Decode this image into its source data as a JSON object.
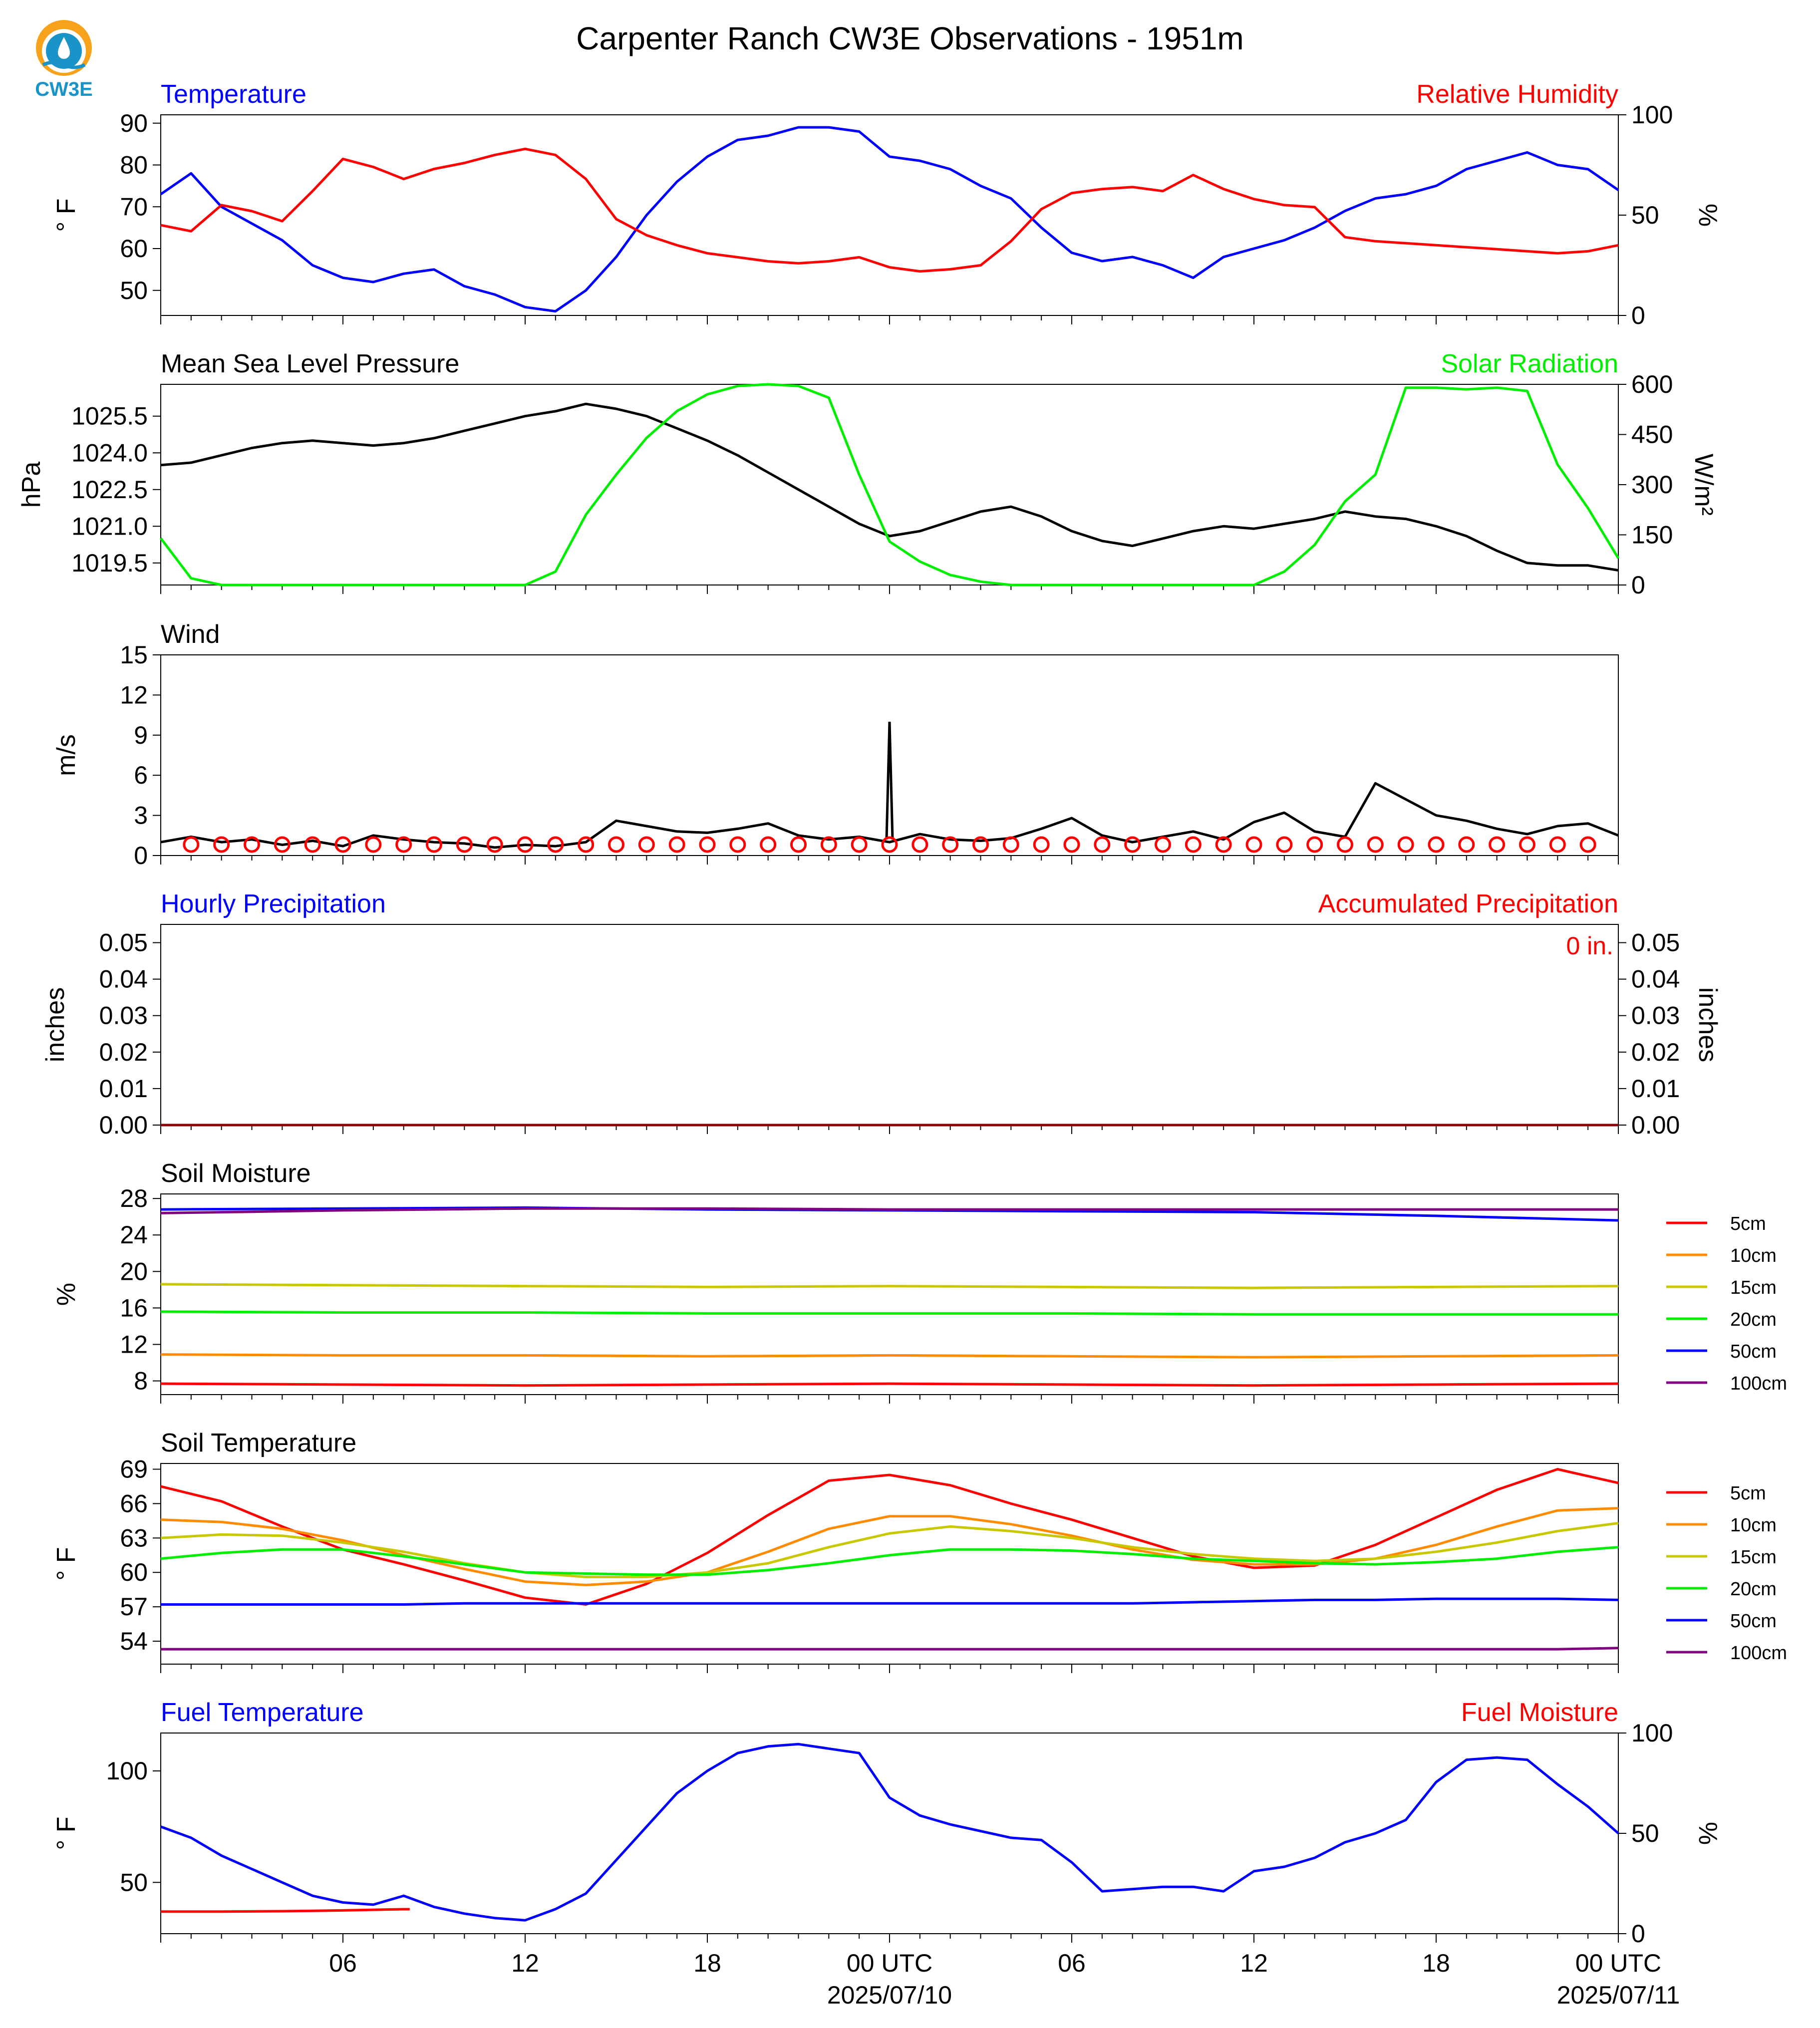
{
  "header": {
    "title": "Carpenter Ranch CW3E Observations - 1951m",
    "logo_text": "CW3E"
  },
  "x_axis": {
    "ticks": [
      "06",
      "12",
      "18",
      "00 UTC",
      "06",
      "12",
      "18",
      "00 UTC"
    ],
    "dates": [
      "2025/07/10",
      "2025/07/11"
    ]
  },
  "chart_data": [
    {
      "id": "temp_rh",
      "type": "line",
      "left_title": "Temperature",
      "right_title": "Relative Humidity",
      "ylabel": "° F",
      "ylabel_right": "%",
      "ylim": [
        44,
        92
      ],
      "ylim_right": [
        0,
        100
      ],
      "yticks": [
        "50",
        "60",
        "70",
        "80",
        "90"
      ],
      "yticks_right": [
        "0",
        "50",
        "100"
      ],
      "x_hours": [
        0,
        1,
        2,
        3,
        4,
        5,
        6,
        7,
        8,
        9,
        10,
        11,
        12,
        13,
        14,
        15,
        16,
        17,
        18,
        19,
        20,
        21,
        22,
        23,
        24,
        25,
        26,
        27,
        28,
        29,
        30,
        31,
        32,
        33,
        34,
        35,
        36,
        37,
        38,
        39,
        40,
        41,
        42,
        43,
        44,
        45,
        46,
        47,
        48
      ],
      "series": [
        {
          "name": "Temperature",
          "axis": "left",
          "color": "#0000ff",
          "values": [
            73,
            78,
            70,
            66,
            62,
            56,
            53,
            52,
            54,
            55,
            51,
            49,
            46,
            45,
            50,
            58,
            68,
            76,
            82,
            86,
            87,
            89,
            89,
            88,
            82,
            81,
            79,
            75,
            72,
            65,
            59,
            57,
            58,
            56,
            53,
            58,
            60,
            62,
            65,
            69,
            72,
            73,
            75,
            79,
            81,
            83,
            80,
            79,
            74
          ]
        },
        {
          "name": "Relative Humidity",
          "axis": "right",
          "color": "#ff0000",
          "values": [
            45,
            42,
            55,
            52,
            47,
            62,
            78,
            74,
            68,
            73,
            76,
            80,
            83,
            80,
            68,
            48,
            40,
            35,
            31,
            29,
            27,
            26,
            27,
            29,
            24,
            22,
            23,
            25,
            37,
            53,
            61,
            63,
            64,
            62,
            70,
            63,
            58,
            55,
            54,
            39,
            37,
            36,
            35,
            34,
            33,
            32,
            31,
            32,
            35
          ]
        }
      ]
    },
    {
      "id": "pressure_solar",
      "type": "line",
      "left_title": "Mean Sea Level Pressure",
      "right_title": "Solar Radiation",
      "ylabel": "hPa",
      "ylabel_right": "W/m²",
      "ylim": [
        1018.6,
        1026.8
      ],
      "ylim_right": [
        0,
        600
      ],
      "yticks": [
        "1019.5",
        "1021.0",
        "1022.5",
        "1024.0",
        "1025.5"
      ],
      "yticks_right": [
        "0",
        "150",
        "300",
        "450",
        "600"
      ],
      "x_hours": [
        0,
        1,
        2,
        3,
        4,
        5,
        6,
        7,
        8,
        9,
        10,
        11,
        12,
        13,
        14,
        15,
        16,
        17,
        18,
        19,
        20,
        21,
        22,
        23,
        24,
        25,
        26,
        27,
        28,
        29,
        30,
        31,
        32,
        33,
        34,
        35,
        36,
        37,
        38,
        39,
        40,
        41,
        42,
        43,
        44,
        45,
        46,
        47,
        48
      ],
      "series": [
        {
          "name": "Mean Sea Level Pressure",
          "axis": "left",
          "color": "#000000",
          "values": [
            1023.5,
            1023.6,
            1023.9,
            1024.2,
            1024.4,
            1024.5,
            1024.4,
            1024.3,
            1024.4,
            1024.6,
            1024.9,
            1025.2,
            1025.5,
            1025.7,
            1026.0,
            1025.8,
            1025.5,
            1025.0,
            1024.5,
            1023.9,
            1023.2,
            1022.5,
            1021.8,
            1021.1,
            1020.6,
            1020.8,
            1021.2,
            1021.6,
            1021.8,
            1021.4,
            1020.8,
            1020.4,
            1020.2,
            1020.5,
            1020.8,
            1021.0,
            1020.9,
            1021.1,
            1021.3,
            1021.6,
            1021.4,
            1021.3,
            1021.0,
            1020.6,
            1020.0,
            1019.5,
            1019.4,
            1019.4,
            1019.2
          ]
        },
        {
          "name": "Solar Radiation",
          "axis": "right",
          "color": "#00ee00",
          "values": [
            140,
            20,
            0,
            0,
            0,
            0,
            0,
            0,
            0,
            0,
            0,
            0,
            0,
            40,
            210,
            330,
            440,
            520,
            570,
            595,
            600,
            595,
            560,
            330,
            130,
            70,
            30,
            10,
            0,
            0,
            0,
            0,
            0,
            0,
            0,
            0,
            0,
            40,
            120,
            250,
            330,
            590,
            590,
            585,
            590,
            580,
            360,
            230,
            80
          ]
        }
      ]
    },
    {
      "id": "wind",
      "type": "line",
      "left_title": "Wind",
      "ylabel": "m/s",
      "ylim": [
        0,
        15
      ],
      "yticks": [
        "0",
        "3",
        "6",
        "9",
        "12",
        "15"
      ],
      "x_hours": [
        0,
        1,
        2,
        3,
        4,
        5,
        6,
        7,
        8,
        9,
        10,
        11,
        12,
        13,
        14,
        15,
        16,
        17,
        18,
        19,
        20,
        21,
        22,
        23,
        24,
        25,
        26,
        27,
        28,
        29,
        30,
        31,
        32,
        33,
        34,
        35,
        36,
        37,
        38,
        39,
        40,
        41,
        42,
        43,
        44,
        45,
        46,
        47,
        48
      ],
      "series": [
        {
          "name": "Wind Speed",
          "axis": "left",
          "color": "#000000",
          "values": [
            1.0,
            1.4,
            1.0,
            1.2,
            0.8,
            1.1,
            0.7,
            1.5,
            1.2,
            1.0,
            0.9,
            0.6,
            0.8,
            0.7,
            1.0,
            2.6,
            2.2,
            1.8,
            1.7,
            2.0,
            2.4,
            1.5,
            1.2,
            1.4,
            1.0,
            1.6,
            1.2,
            1.1,
            1.3,
            2.0,
            2.8,
            1.5,
            1.0,
            1.4,
            1.8,
            1.2,
            2.5,
            3.2,
            1.8,
            1.4,
            5.4,
            4.2,
            3.0,
            2.6,
            2.0,
            1.6,
            2.2,
            2.4,
            1.5
          ]
        }
      ],
      "peak": {
        "x": 24.0,
        "y": 10.0
      }
    },
    {
      "id": "precip",
      "type": "line",
      "left_title": "Hourly Precipitation",
      "right_title": "Accumulated Precipitation",
      "ylabel": "inches",
      "ylabel_right": "inches",
      "ylim": [
        0,
        0.055
      ],
      "yticks": [
        "0.00",
        "0.01",
        "0.02",
        "0.03",
        "0.04",
        "0.05"
      ],
      "yticks_right": [
        "0.00",
        "0.01",
        "0.02",
        "0.03",
        "0.04",
        "0.05"
      ],
      "annotation": "0 in.",
      "x_hours": [
        0,
        48
      ],
      "series": [
        {
          "name": "Hourly Precipitation",
          "axis": "left",
          "color": "#0000ff",
          "values": [
            0,
            0
          ]
        },
        {
          "name": "Accumulated Precipitation",
          "axis": "right",
          "color": "#8b0000",
          "values": [
            0,
            0
          ]
        }
      ]
    },
    {
      "id": "soil_moisture",
      "type": "line",
      "left_title": "Soil Moisture",
      "ylabel": "%",
      "ylim": [
        6.5,
        28.5
      ],
      "yticks": [
        "8",
        "12",
        "16",
        "20",
        "24",
        "28"
      ],
      "x_hours": [
        0,
        6,
        12,
        18,
        24,
        30,
        36,
        42,
        48
      ],
      "series": [
        {
          "name": "5cm",
          "color": "#ff0000",
          "values": [
            7.7,
            7.6,
            7.5,
            7.6,
            7.7,
            7.6,
            7.5,
            7.6,
            7.7
          ]
        },
        {
          "name": "10cm",
          "color": "#ff8c00",
          "values": [
            10.9,
            10.8,
            10.8,
            10.7,
            10.8,
            10.7,
            10.6,
            10.7,
            10.8
          ]
        },
        {
          "name": "15cm",
          "color": "#c8c800",
          "values": [
            18.6,
            18.5,
            18.4,
            18.3,
            18.4,
            18.3,
            18.2,
            18.3,
            18.4
          ]
        },
        {
          "name": "20cm",
          "color": "#00ee00",
          "values": [
            15.6,
            15.5,
            15.5,
            15.4,
            15.4,
            15.4,
            15.3,
            15.3,
            15.3
          ]
        },
        {
          "name": "50cm",
          "color": "#0000ff",
          "values": [
            26.8,
            26.9,
            27.0,
            26.8,
            26.7,
            26.6,
            26.5,
            26.1,
            25.6
          ]
        },
        {
          "name": "100cm",
          "color": "#800080",
          "values": [
            26.4,
            26.7,
            26.9,
            26.9,
            26.8,
            26.8,
            26.8,
            26.8,
            26.8
          ]
        }
      ]
    },
    {
      "id": "soil_temperature",
      "type": "line",
      "left_title": "Soil Temperature",
      "ylabel": "° F",
      "ylim": [
        52,
        69.5
      ],
      "yticks": [
        "54",
        "57",
        "60",
        "63",
        "66",
        "69"
      ],
      "x_hours": [
        0,
        2,
        4,
        6,
        8,
        10,
        12,
        14,
        16,
        18,
        20,
        22,
        24,
        26,
        28,
        30,
        32,
        34,
        36,
        38,
        40,
        42,
        44,
        46,
        48
      ],
      "series": [
        {
          "name": "5cm",
          "color": "#ff0000",
          "values": [
            67.5,
            66.2,
            64.0,
            62.0,
            60.7,
            59.3,
            57.8,
            57.2,
            59.0,
            61.7,
            65.0,
            68.0,
            68.5,
            67.6,
            66.0,
            64.6,
            63.0,
            61.4,
            60.4,
            60.6,
            62.4,
            64.8,
            67.2,
            69.0,
            67.8
          ]
        },
        {
          "name": "10cm",
          "color": "#ff8c00",
          "values": [
            64.6,
            64.4,
            63.8,
            62.8,
            61.5,
            60.3,
            59.2,
            58.9,
            59.2,
            60.0,
            61.8,
            63.8,
            64.9,
            64.9,
            64.2,
            63.2,
            62.0,
            61.1,
            60.7,
            60.7,
            61.2,
            62.4,
            64.0,
            65.4,
            65.6
          ]
        },
        {
          "name": "15cm",
          "color": "#c8c800",
          "values": [
            63.0,
            63.3,
            63.2,
            62.6,
            61.8,
            60.8,
            60.0,
            59.6,
            59.6,
            60.0,
            60.8,
            62.2,
            63.4,
            64.0,
            63.6,
            63.0,
            62.2,
            61.6,
            61.2,
            61.0,
            61.2,
            61.8,
            62.6,
            63.6,
            64.3
          ]
        },
        {
          "name": "20cm",
          "color": "#00ee00",
          "values": [
            61.2,
            61.7,
            62.0,
            62.0,
            61.4,
            60.7,
            60.0,
            59.9,
            59.8,
            59.8,
            60.2,
            60.8,
            61.5,
            62.0,
            62.0,
            61.9,
            61.6,
            61.2,
            61.0,
            60.8,
            60.7,
            60.9,
            61.2,
            61.8,
            62.2
          ]
        },
        {
          "name": "50cm",
          "color": "#0000ff",
          "values": [
            57.2,
            57.2,
            57.2,
            57.2,
            57.2,
            57.3,
            57.3,
            57.3,
            57.3,
            57.3,
            57.3,
            57.3,
            57.3,
            57.3,
            57.3,
            57.3,
            57.3,
            57.4,
            57.5,
            57.6,
            57.6,
            57.7,
            57.7,
            57.7,
            57.6
          ]
        },
        {
          "name": "100cm",
          "color": "#800080",
          "values": [
            53.3,
            53.3,
            53.3,
            53.3,
            53.3,
            53.3,
            53.3,
            53.3,
            53.3,
            53.3,
            53.3,
            53.3,
            53.3,
            53.3,
            53.3,
            53.3,
            53.3,
            53.3,
            53.3,
            53.3,
            53.3,
            53.3,
            53.3,
            53.3,
            53.4
          ]
        }
      ]
    },
    {
      "id": "fuel",
      "type": "line",
      "left_title": "Fuel Temperature",
      "right_title": "Fuel Moisture",
      "ylabel": "° F",
      "ylabel_right": "%",
      "ylim": [
        27,
        117
      ],
      "ylim_right": [
        0,
        100
      ],
      "yticks": [
        "50",
        "100"
      ],
      "yticks_right": [
        "0",
        "50",
        "100"
      ],
      "x_hours": [
        0,
        1,
        2,
        3,
        4,
        5,
        6,
        7,
        8,
        9,
        10,
        11,
        12,
        13,
        14,
        15,
        16,
        17,
        18,
        19,
        20,
        21,
        22,
        23,
        24,
        25,
        26,
        27,
        28,
        29,
        30,
        31,
        32,
        33,
        34,
        35,
        36,
        37,
        38,
        39,
        40,
        41,
        42,
        43,
        44,
        45,
        46,
        47,
        48
      ],
      "series": [
        {
          "name": "Fuel Temperature",
          "axis": "left",
          "color": "#0000ff",
          "values": [
            75,
            70,
            62,
            56,
            50,
            44,
            41,
            40,
            44,
            39,
            36,
            34,
            33,
            38,
            45,
            60,
            75,
            90,
            100,
            108,
            111,
            112,
            110,
            108,
            88,
            80,
            76,
            73,
            70,
            69,
            59,
            46,
            47,
            48,
            48,
            46,
            55,
            57,
            61,
            68,
            72,
            78,
            95,
            105,
            106,
            105,
            94,
            84,
            72
          ]
        },
        {
          "name": "Fuel Moisture",
          "axis": "right",
          "color": "#ff0000",
          "x_hours": [
            0,
            2,
            4,
            6,
            8,
            8.2
          ],
          "values": [
            11,
            11,
            11.2,
            11.6,
            12.2,
            12.2
          ]
        }
      ]
    }
  ]
}
